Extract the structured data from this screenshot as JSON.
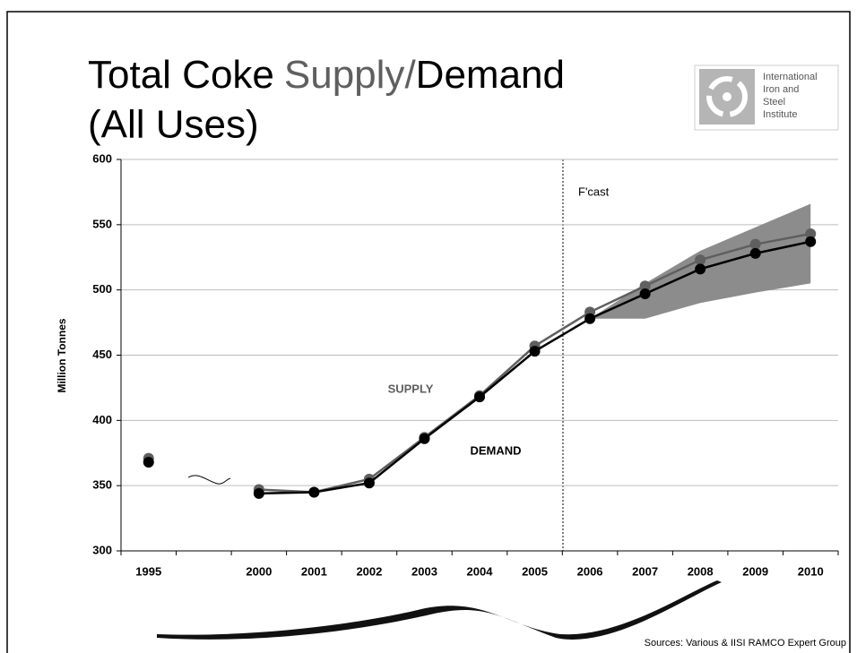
{
  "chart_data": {
    "type": "line",
    "title": {
      "line1": [
        "Total Coke",
        "Supply",
        "/",
        "Demand"
      ],
      "line2": "(All Uses)"
    },
    "logo": [
      "International",
      "Iron and",
      "Steel",
      "Institute"
    ],
    "y_label": "Million Tonnes",
    "categories": [
      "1995",
      null,
      "2000",
      "2001",
      "2002",
      "2003",
      "2004",
      "2005",
      "2006",
      "2007",
      "2008",
      "2009",
      "2010"
    ],
    "series": [
      {
        "name": "SUPPLY",
        "color": "#5f5f5f",
        "values": [
          371,
          null,
          347,
          345,
          355,
          387,
          419,
          457,
          483,
          503,
          523,
          535,
          543
        ]
      },
      {
        "name": "DEMAND",
        "color": "#000000",
        "values": [
          368,
          null,
          344,
          345,
          352,
          386,
          418,
          453,
          478,
          497,
          516,
          528,
          537
        ]
      }
    ],
    "forecast_range": {
      "color": "#8c8c8c",
      "lower": [
        null,
        null,
        null,
        null,
        null,
        null,
        null,
        null,
        478,
        478,
        490,
        498,
        505
      ],
      "upper": [
        null,
        null,
        null,
        null,
        null,
        null,
        null,
        null,
        478,
        505,
        530,
        548,
        566
      ]
    },
    "forecast_label": "F'cast",
    "ylim": [
      300,
      600
    ],
    "yticks": [
      300,
      350,
      400,
      450,
      500,
      550,
      600
    ],
    "grid": true,
    "source": "Sources: Various & IISI RAMCO Expert Group"
  }
}
